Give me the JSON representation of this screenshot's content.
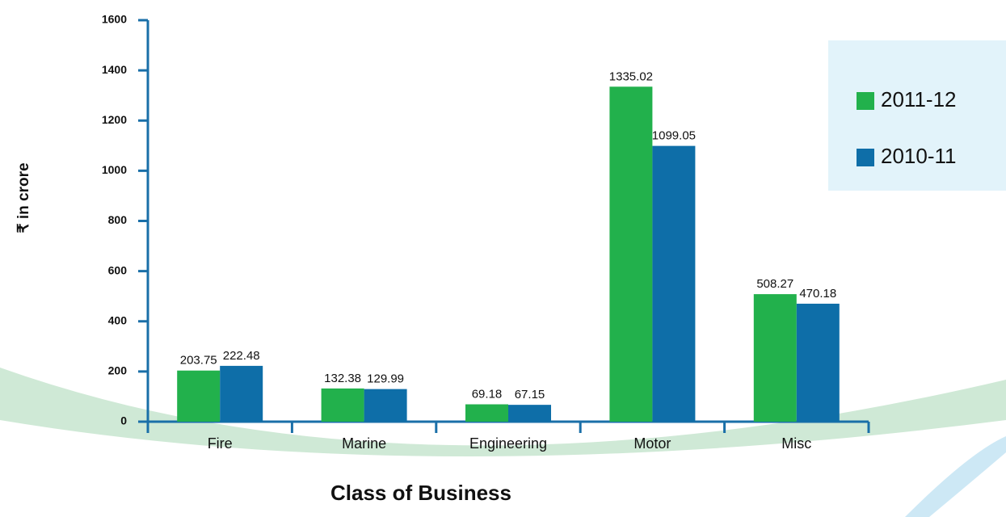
{
  "chart_data": {
    "type": "bar",
    "y_label": "₹ in crore",
    "x_label": "Class of Business",
    "categories": [
      "Fire",
      "Marine",
      "Engineering",
      "Motor",
      "Misc"
    ],
    "series": [
      {
        "name": "2011-12",
        "color": "#22b14c",
        "values": [
          203.75,
          132.38,
          69.18,
          1335.02,
          508.27
        ]
      },
      {
        "name": "2010-11",
        "color": "#0e6ea8",
        "values": [
          222.48,
          129.99,
          67.15,
          1099.05,
          470.18
        ]
      }
    ],
    "ylim": [
      0,
      1600
    ],
    "yticks": [
      0,
      200,
      400,
      600,
      800,
      1000,
      1200,
      1400,
      1600
    ],
    "legend": "right"
  }
}
